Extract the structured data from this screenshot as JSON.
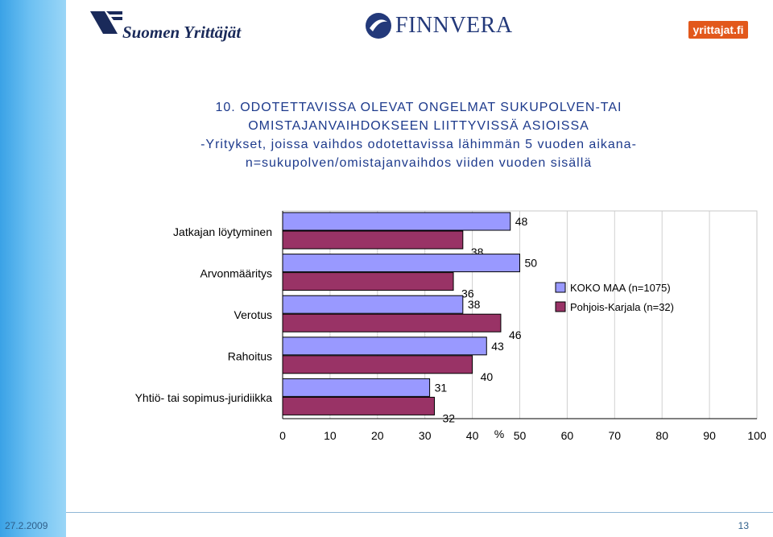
{
  "logos": {
    "suomen_yrittajat": "Suomen Yrittäjät",
    "finnvera": "FINNVERA",
    "yrittajat_fi": "yrittajat.fi"
  },
  "title": {
    "line1": "10. ODOTETTAVISSA OLEVAT ONGELMAT SUKUPOLVEN-TAI",
    "line2": "OMISTAJANVAIHDOKSEEN LIITTYVISSÄ ASIOISSA",
    "line3": "-Yritykset, joissa vaihdos odotettavissa lähimmän 5 vuoden aikana-",
    "line4": "n=sukupolven/omistajanvaihdos viiden vuoden sisällä"
  },
  "footer": {
    "date": "27.2.2009",
    "page": "13"
  },
  "colors": {
    "series1": "#9999ff",
    "series2": "#993366",
    "title": "#1d3a8c"
  },
  "chart_data": {
    "type": "bar",
    "orientation": "horizontal",
    "categories": [
      "Jatkajan löytyminen",
      "Arvonmääritys",
      "Verotus",
      "Rahoitus",
      "Yhtiö- tai sopimus-juridiikka"
    ],
    "series": [
      {
        "name": "KOKO MAA (n=1075)",
        "values": [
          48,
          50,
          38,
          43,
          31
        ]
      },
      {
        "name": "Pohjois-Karjala (n=32)",
        "values": [
          38,
          36,
          46,
          40,
          32
        ]
      }
    ],
    "xlabel": "%",
    "xlim": [
      0,
      100
    ],
    "xticks": [
      0,
      10,
      20,
      30,
      40,
      50,
      60,
      70,
      80,
      90,
      100
    ],
    "grid": "vertical",
    "legend_position": "right"
  }
}
